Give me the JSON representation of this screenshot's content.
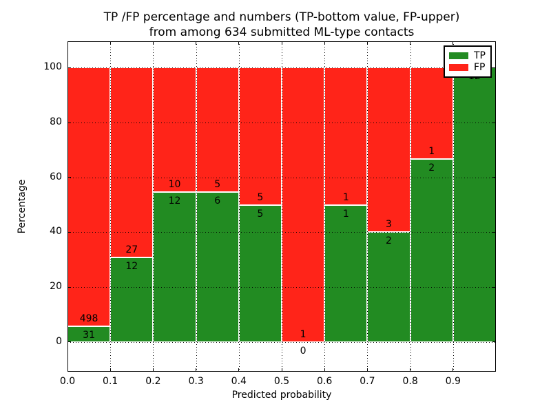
{
  "figure": {
    "title_line1": "TP /FP percentage and numbers (TP-bottom value, FP-upper)",
    "title_line2": "from among 634 submitted ML-type contacts"
  },
  "axes": {
    "xlabel": "Predicted probability",
    "ylabel": "Percentage",
    "xlim": [
      0,
      1
    ],
    "ylim": [
      -10.8,
      109.6
    ],
    "xtick_values": [
      0,
      0.1,
      0.2,
      0.3,
      0.4,
      0.5,
      0.6,
      0.7,
      0.8,
      0.9
    ],
    "xtick_labels": [
      "0.0",
      "0.1",
      "0.2",
      "0.3",
      "0.4",
      "0.5",
      "0.6",
      "0.7",
      "0.8",
      "0.9"
    ],
    "ytick_values": [
      0,
      20,
      40,
      60,
      80,
      100
    ],
    "ytick_labels": [
      "0",
      "20",
      "40",
      "60",
      "80",
      "100"
    ],
    "grid_style": "dotted"
  },
  "legend": {
    "position": "upper-right",
    "entries": [
      {
        "label": "TP",
        "color": "#228b22"
      },
      {
        "label": "FP",
        "color": "#ff2419"
      }
    ]
  },
  "chart_data": {
    "type": "bar",
    "stacked": true,
    "percent_normalized": true,
    "title": "TP /FP percentage and numbers (TP-bottom value, FP-upper) from among 634 submitted ML-type contacts",
    "xlabel": "Predicted probability",
    "ylabel": "Percentage",
    "total_contacts": 634,
    "bin_edges": [
      0.0,
      0.1,
      0.2,
      0.3,
      0.4,
      0.5,
      0.6,
      0.7,
      0.8,
      0.9,
      1.0
    ],
    "categories": [
      "0.0-0.1",
      "0.1-0.2",
      "0.2-0.3",
      "0.3-0.4",
      "0.4-0.5",
      "0.5-0.6",
      "0.6-0.7",
      "0.7-0.8",
      "0.8-0.9",
      "0.9-1.0"
    ],
    "series": [
      {
        "name": "TP",
        "color": "#228b22",
        "counts": [
          31,
          12,
          12,
          6,
          5,
          0,
          1,
          2,
          2,
          12
        ]
      },
      {
        "name": "FP",
        "color": "#ff2419",
        "counts": [
          498,
          27,
          10,
          5,
          5,
          1,
          1,
          3,
          1,
          0
        ]
      }
    ],
    "tp_percent": [
      5.9,
      30.8,
      54.5,
      54.5,
      50.0,
      0.0,
      50.0,
      40.0,
      66.7,
      100.0
    ],
    "ylim": [
      0,
      100
    ],
    "grid": true,
    "legend_position": "upper right"
  }
}
